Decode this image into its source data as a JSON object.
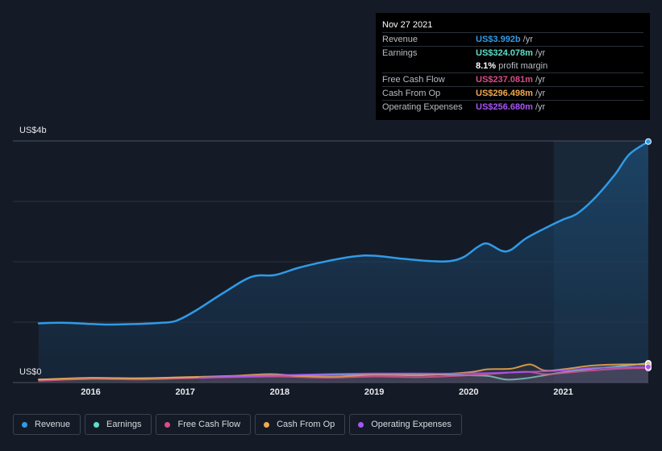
{
  "tooltip": {
    "date": "Nov 27 2021",
    "rows": [
      {
        "label": "Revenue",
        "value": "US$3.992b",
        "unit": "/yr",
        "color": "#2f9be8"
      },
      {
        "label": "Earnings",
        "value": "US$324.078m",
        "unit": "/yr",
        "color": "#5ce0c8"
      },
      {
        "label": "",
        "value": "8.1%",
        "unit": "profit margin",
        "color": "#ffffff"
      },
      {
        "label": "Free Cash Flow",
        "value": "US$237.081m",
        "unit": "/yr",
        "color": "#d94c8a"
      },
      {
        "label": "Cash From Op",
        "value": "US$296.498m",
        "unit": "/yr",
        "color": "#f0a94f"
      },
      {
        "label": "Operating Expenses",
        "value": "US$256.680m",
        "unit": "/yr",
        "color": "#a855f7"
      }
    ]
  },
  "legend": [
    {
      "label": "Revenue",
      "color": "#2f9be8"
    },
    {
      "label": "Earnings",
      "color": "#5ce0c8"
    },
    {
      "label": "Free Cash Flow",
      "color": "#d94c8a"
    },
    {
      "label": "Cash From Op",
      "color": "#f0a94f"
    },
    {
      "label": "Operating Expenses",
      "color": "#a855f7"
    }
  ],
  "chart_data": {
    "type": "area",
    "y_top_label": "US$4b",
    "y_bottom_label": "US$0",
    "ylim": [
      0,
      4.0
    ],
    "y_unit": "US$ billions",
    "xlim": [
      2015.45,
      2021.9
    ],
    "x_ticks": [
      "2016",
      "2017",
      "2018",
      "2019",
      "2020",
      "2021"
    ],
    "highlight_from": 2020.9,
    "series": [
      {
        "name": "Revenue",
        "color": "#2f9be8",
        "x": [
          2015.45,
          2015.7,
          2016.0,
          2016.2,
          2016.5,
          2016.75,
          2016.9,
          2017.1,
          2017.4,
          2017.7,
          2017.95,
          2018.2,
          2018.5,
          2018.8,
          2019.0,
          2019.3,
          2019.6,
          2019.8,
          2019.95,
          2020.1,
          2020.2,
          2020.35,
          2020.45,
          2020.6,
          2020.8,
          2021.0,
          2021.15,
          2021.35,
          2021.55,
          2021.7,
          2021.9
        ],
        "values": [
          0.98,
          0.99,
          0.97,
          0.96,
          0.97,
          0.99,
          1.02,
          1.18,
          1.48,
          1.75,
          1.78,
          1.9,
          2.01,
          2.09,
          2.1,
          2.05,
          2.01,
          2.01,
          2.08,
          2.25,
          2.3,
          2.18,
          2.2,
          2.38,
          2.55,
          2.7,
          2.8,
          3.08,
          3.45,
          3.78,
          3.99
        ]
      },
      {
        "name": "Earnings",
        "color": "#5ce0c8",
        "x": [
          2015.45,
          2016.0,
          2016.5,
          2017.0,
          2017.5,
          2018.0,
          2018.5,
          2019.0,
          2019.5,
          2020.0,
          2020.2,
          2020.4,
          2020.6,
          2020.8,
          2021.0,
          2021.3,
          2021.6,
          2021.9
        ],
        "values": [
          0.05,
          0.06,
          0.07,
          0.08,
          0.1,
          0.12,
          0.13,
          0.14,
          0.14,
          0.12,
          0.11,
          0.05,
          0.07,
          0.12,
          0.17,
          0.23,
          0.27,
          0.32
        ]
      },
      {
        "name": "Free Cash Flow",
        "color": "#d94c8a",
        "x": [
          2015.45,
          2016.0,
          2016.5,
          2017.0,
          2017.5,
          2018.0,
          2018.5,
          2019.0,
          2019.5,
          2020.0,
          2020.3,
          2020.6,
          2020.8,
          2021.0,
          2021.3,
          2021.6,
          2021.9
        ],
        "values": [
          0.03,
          0.06,
          0.05,
          0.07,
          0.09,
          0.1,
          0.08,
          0.1,
          0.09,
          0.12,
          0.15,
          0.18,
          0.14,
          0.16,
          0.2,
          0.23,
          0.24
        ]
      },
      {
        "name": "Cash From Op",
        "color": "#f0a94f",
        "x": [
          2015.45,
          2016.0,
          2016.5,
          2017.0,
          2017.5,
          2017.9,
          2018.2,
          2018.6,
          2019.0,
          2019.5,
          2020.0,
          2020.2,
          2020.45,
          2020.65,
          2020.8,
          2021.0,
          2021.3,
          2021.6,
          2021.9
        ],
        "values": [
          0.05,
          0.08,
          0.07,
          0.09,
          0.11,
          0.14,
          0.11,
          0.1,
          0.13,
          0.12,
          0.17,
          0.22,
          0.23,
          0.3,
          0.2,
          0.22,
          0.28,
          0.3,
          0.3
        ]
      },
      {
        "name": "Operating Expenses",
        "color": "#a855f7",
        "x": [
          2017.15,
          2017.5,
          2018.0,
          2018.5,
          2019.0,
          2019.5,
          2020.0,
          2020.5,
          2021.0,
          2021.3,
          2021.6,
          2021.9
        ],
        "values": [
          0.08,
          0.1,
          0.12,
          0.14,
          0.15,
          0.15,
          0.15,
          0.17,
          0.2,
          0.24,
          0.25,
          0.26
        ]
      }
    ]
  }
}
